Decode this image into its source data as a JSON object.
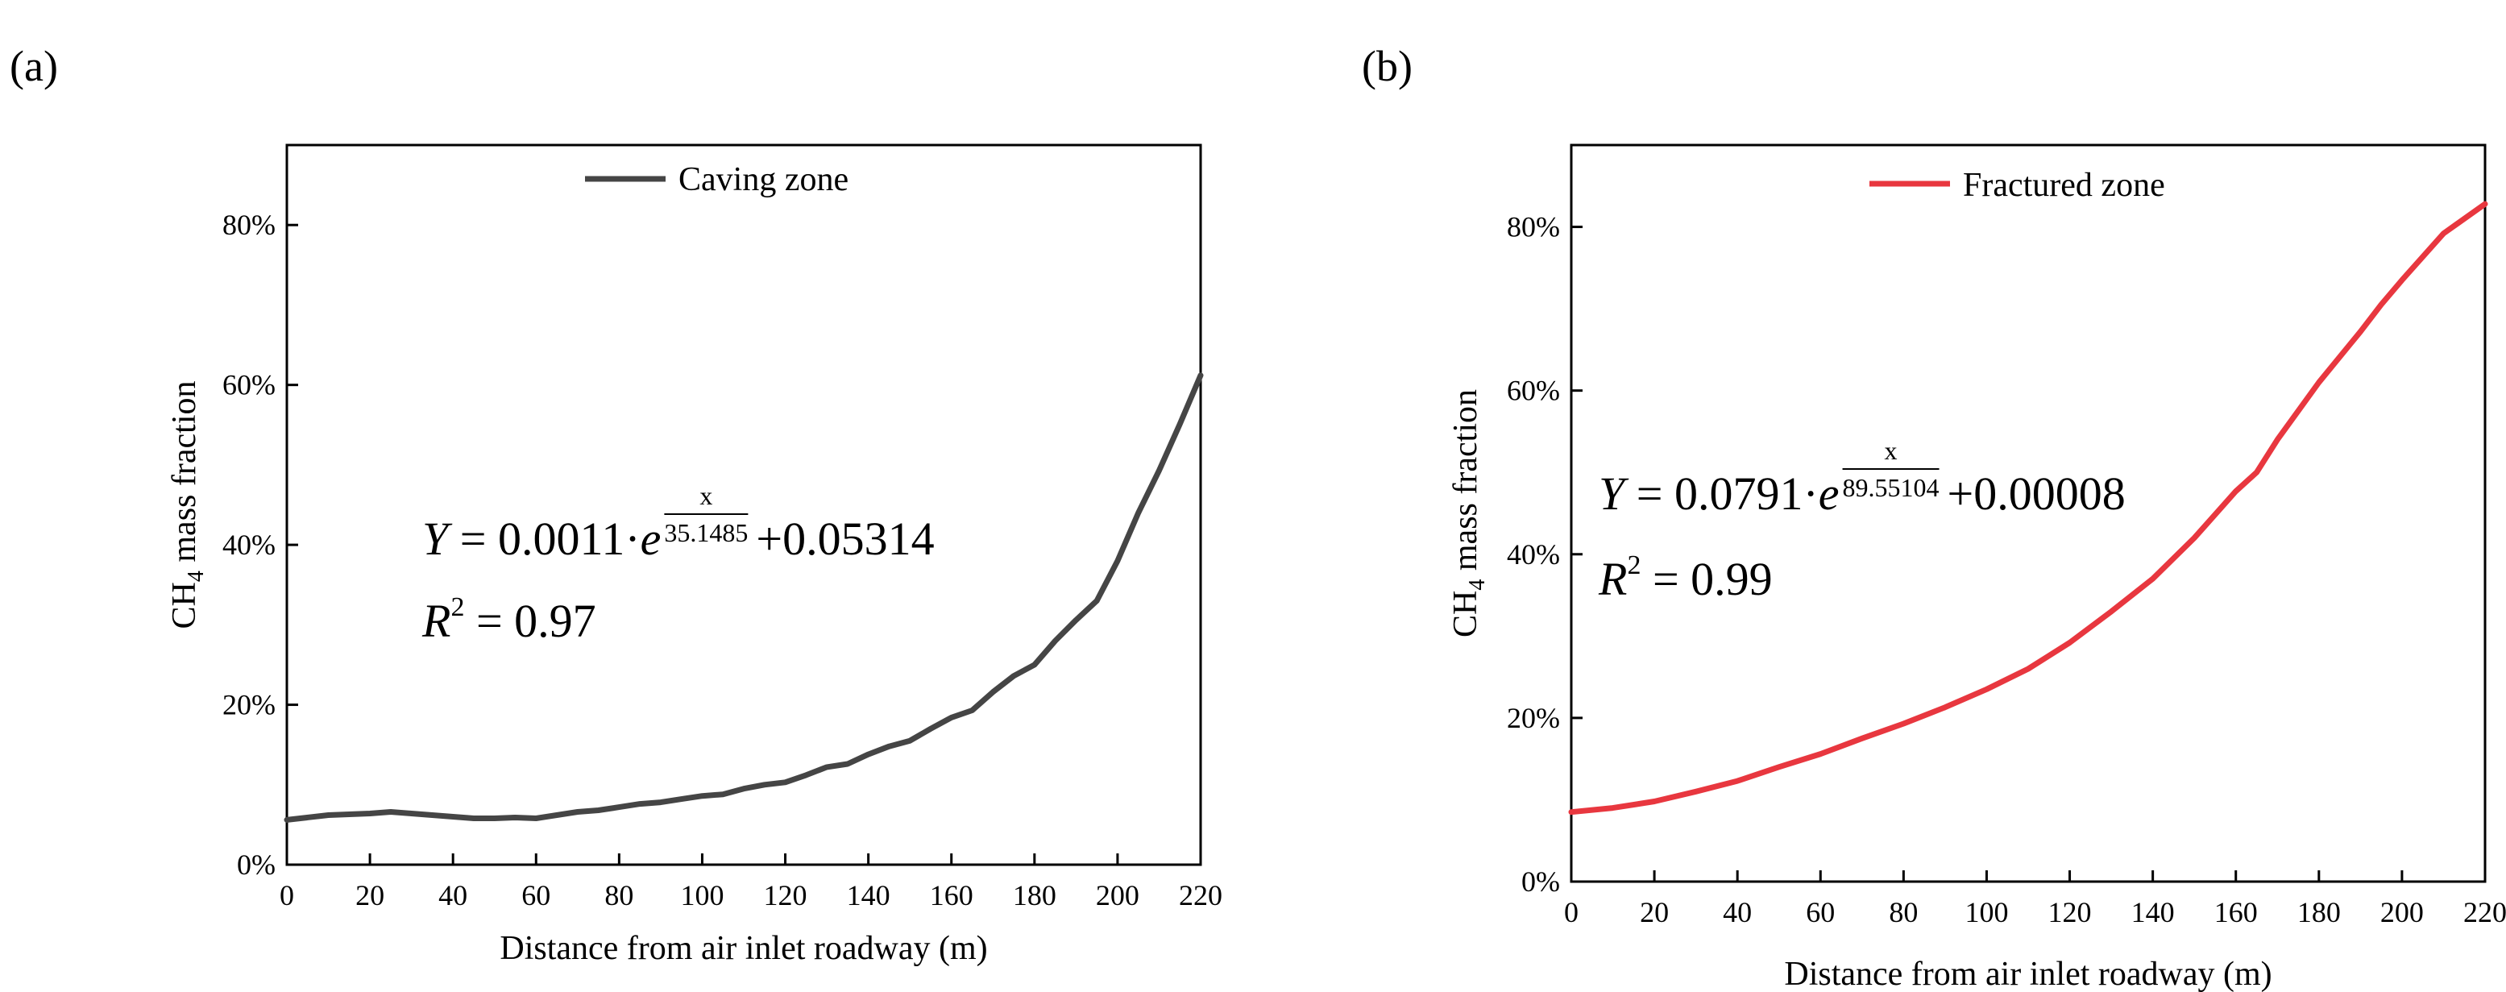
{
  "chart_data": [
    {
      "panel": "(a)",
      "type": "line",
      "xlabel": "Distance from air inlet roadway (m)",
      "ylabel_main": "CH",
      "ylabel_sub": "4",
      "ylabel_rest": " mass fraction",
      "xlim": [
        0,
        220
      ],
      "ylim": [
        0,
        0.9
      ],
      "xticks": [
        0,
        20,
        40,
        60,
        80,
        100,
        120,
        140,
        160,
        180,
        200,
        220
      ],
      "yticks": [
        0,
        0.2,
        0.4,
        0.6,
        0.8
      ],
      "ytick_labels": [
        "0%",
        "20%",
        "40%",
        "60%",
        "80%"
      ],
      "series": [
        {
          "name": "Caving zone",
          "color": "#454545",
          "x": [
            0,
            10,
            20,
            25,
            30,
            40,
            45,
            50,
            55,
            60,
            65,
            70,
            75,
            80,
            85,
            90,
            95,
            100,
            105,
            110,
            115,
            120,
            125,
            130,
            135,
            140,
            145,
            150,
            155,
            160,
            165,
            170,
            175,
            180,
            185,
            190,
            195,
            200,
            205,
            210,
            215,
            220
          ],
          "y": [
            0.056,
            0.062,
            0.064,
            0.066,
            0.064,
            0.06,
            0.058,
            0.058,
            0.059,
            0.058,
            0.062,
            0.066,
            0.068,
            0.072,
            0.076,
            0.078,
            0.082,
            0.086,
            0.088,
            0.095,
            0.1,
            0.103,
            0.112,
            0.122,
            0.126,
            0.138,
            0.148,
            0.155,
            0.17,
            0.184,
            0.193,
            0.216,
            0.236,
            0.25,
            0.28,
            0.306,
            0.33,
            0.38,
            0.44,
            0.493,
            0.551,
            0.612
          ]
        }
      ],
      "equation": {
        "lhs": "Y",
        "eq": " = ",
        "coef": "0.0011",
        "dot": "·",
        "base": "e",
        "exp_num": "x",
        "exp_den": "35.1485",
        "tail": "+0.05314",
        "r2_lhs": "R",
        "r2_sup": "2",
        "r2_rhs": " = 0.97"
      }
    },
    {
      "panel": "(b)",
      "type": "line",
      "xlabel": "Distance from air inlet roadway (m)",
      "ylabel_main": "CH",
      "ylabel_sub": "4",
      "ylabel_rest": " mass fraction",
      "xlim": [
        0,
        220
      ],
      "ylim": [
        0,
        0.9
      ],
      "xticks": [
        0,
        20,
        40,
        60,
        80,
        100,
        120,
        140,
        160,
        180,
        200,
        220
      ],
      "yticks": [
        0,
        0.2,
        0.4,
        0.6,
        0.8
      ],
      "ytick_labels": [
        "0%",
        "20%",
        "40%",
        "60%",
        "80%"
      ],
      "series": [
        {
          "name": "Fractured zone",
          "color": "#e8373f",
          "x": [
            0,
            10,
            20,
            30,
            40,
            50,
            60,
            70,
            80,
            90,
            100,
            110,
            120,
            130,
            140,
            150,
            160,
            165,
            170,
            180,
            190,
            195,
            200,
            210,
            220
          ],
          "y": [
            0.085,
            0.09,
            0.098,
            0.11,
            0.123,
            0.14,
            0.156,
            0.175,
            0.193,
            0.213,
            0.235,
            0.26,
            0.292,
            0.33,
            0.37,
            0.42,
            0.477,
            0.5,
            0.54,
            0.61,
            0.672,
            0.705,
            0.735,
            0.792,
            0.828
          ]
        }
      ],
      "equation": {
        "lhs": "Y",
        "eq": " = ",
        "coef": "0.0791",
        "dot": "·",
        "base": "e",
        "exp_num": "x",
        "exp_den": "89.55104",
        "tail": "+0.00008",
        "r2_lhs": "R",
        "r2_sup": "2",
        "r2_rhs": " = 0.99"
      }
    }
  ]
}
